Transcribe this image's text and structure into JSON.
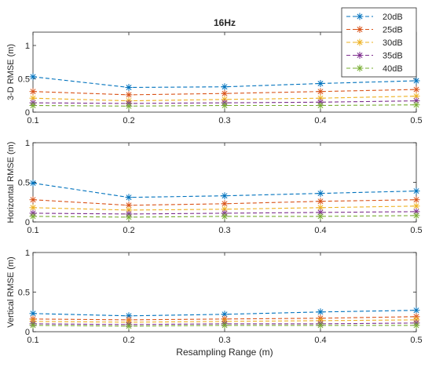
{
  "chart_data": [
    {
      "type": "line",
      "title": "16Hz",
      "xlabel": "",
      "ylabel": "3-D RMSE (m)",
      "xlim": [
        0.1,
        0.5
      ],
      "ylim": [
        0,
        1.2
      ],
      "x_ticks": [
        "0.1",
        "0.2",
        "0.3",
        "0.4",
        "0.5"
      ],
      "y_ticks": [
        "0",
        "0.5",
        "1"
      ],
      "x": [
        0.1,
        0.2,
        0.3,
        0.4,
        0.5
      ],
      "legend": "top-right",
      "series": [
        {
          "name": "20dB",
          "color": "#0072BD",
          "values": [
            0.53,
            0.37,
            0.38,
            0.43,
            0.47
          ]
        },
        {
          "name": "25dB",
          "color": "#D95319",
          "values": [
            0.31,
            0.26,
            0.28,
            0.31,
            0.34
          ]
        },
        {
          "name": "30dB",
          "color": "#EDB120",
          "values": [
            0.21,
            0.17,
            0.19,
            0.21,
            0.24
          ]
        },
        {
          "name": "35dB",
          "color": "#7E2F8E",
          "values": [
            0.14,
            0.13,
            0.14,
            0.15,
            0.17
          ]
        },
        {
          "name": "40dB",
          "color": "#77AC30",
          "values": [
            0.1,
            0.09,
            0.1,
            0.1,
            0.11
          ]
        }
      ]
    },
    {
      "type": "line",
      "title": "",
      "xlabel": "",
      "ylabel": "Horizontal RMSE (m)",
      "xlim": [
        0.1,
        0.5
      ],
      "ylim": [
        0,
        1
      ],
      "x_ticks": [
        "0.1",
        "0.2",
        "0.3",
        "0.4",
        "0.5"
      ],
      "y_ticks": [
        "0",
        "0.5",
        "1"
      ],
      "x": [
        0.1,
        0.2,
        0.3,
        0.4,
        0.5
      ],
      "series": [
        {
          "name": "20dB",
          "color": "#0072BD",
          "values": [
            0.49,
            0.31,
            0.33,
            0.36,
            0.39
          ]
        },
        {
          "name": "25dB",
          "color": "#D95319",
          "values": [
            0.28,
            0.21,
            0.23,
            0.26,
            0.28
          ]
        },
        {
          "name": "30dB",
          "color": "#EDB120",
          "values": [
            0.18,
            0.15,
            0.16,
            0.18,
            0.2
          ]
        },
        {
          "name": "35dB",
          "color": "#7E2F8E",
          "values": [
            0.11,
            0.1,
            0.11,
            0.12,
            0.13
          ]
        },
        {
          "name": "40dB",
          "color": "#77AC30",
          "values": [
            0.07,
            0.06,
            0.07,
            0.07,
            0.08
          ]
        }
      ]
    },
    {
      "type": "line",
      "title": "",
      "xlabel": "Resampling Range (m)",
      "ylabel": "Vertical RMSE (m)",
      "xlim": [
        0.1,
        0.5
      ],
      "ylim": [
        0,
        1
      ],
      "x_ticks": [
        "0.1",
        "0.2",
        "0.3",
        "0.4",
        "0.5"
      ],
      "y_ticks": [
        "0",
        "0.5",
        "1"
      ],
      "x": [
        0.1,
        0.2,
        0.3,
        0.4,
        0.5
      ],
      "series": [
        {
          "name": "20dB",
          "color": "#0072BD",
          "values": [
            0.23,
            0.2,
            0.22,
            0.25,
            0.27
          ]
        },
        {
          "name": "25dB",
          "color": "#D95319",
          "values": [
            0.16,
            0.15,
            0.16,
            0.17,
            0.19
          ]
        },
        {
          "name": "30dB",
          "color": "#EDB120",
          "values": [
            0.13,
            0.12,
            0.13,
            0.14,
            0.15
          ]
        },
        {
          "name": "35dB",
          "color": "#7E2F8E",
          "values": [
            0.1,
            0.09,
            0.1,
            0.1,
            0.11
          ]
        },
        {
          "name": "40dB",
          "color": "#77AC30",
          "values": [
            0.08,
            0.07,
            0.08,
            0.08,
            0.08
          ]
        }
      ]
    }
  ]
}
